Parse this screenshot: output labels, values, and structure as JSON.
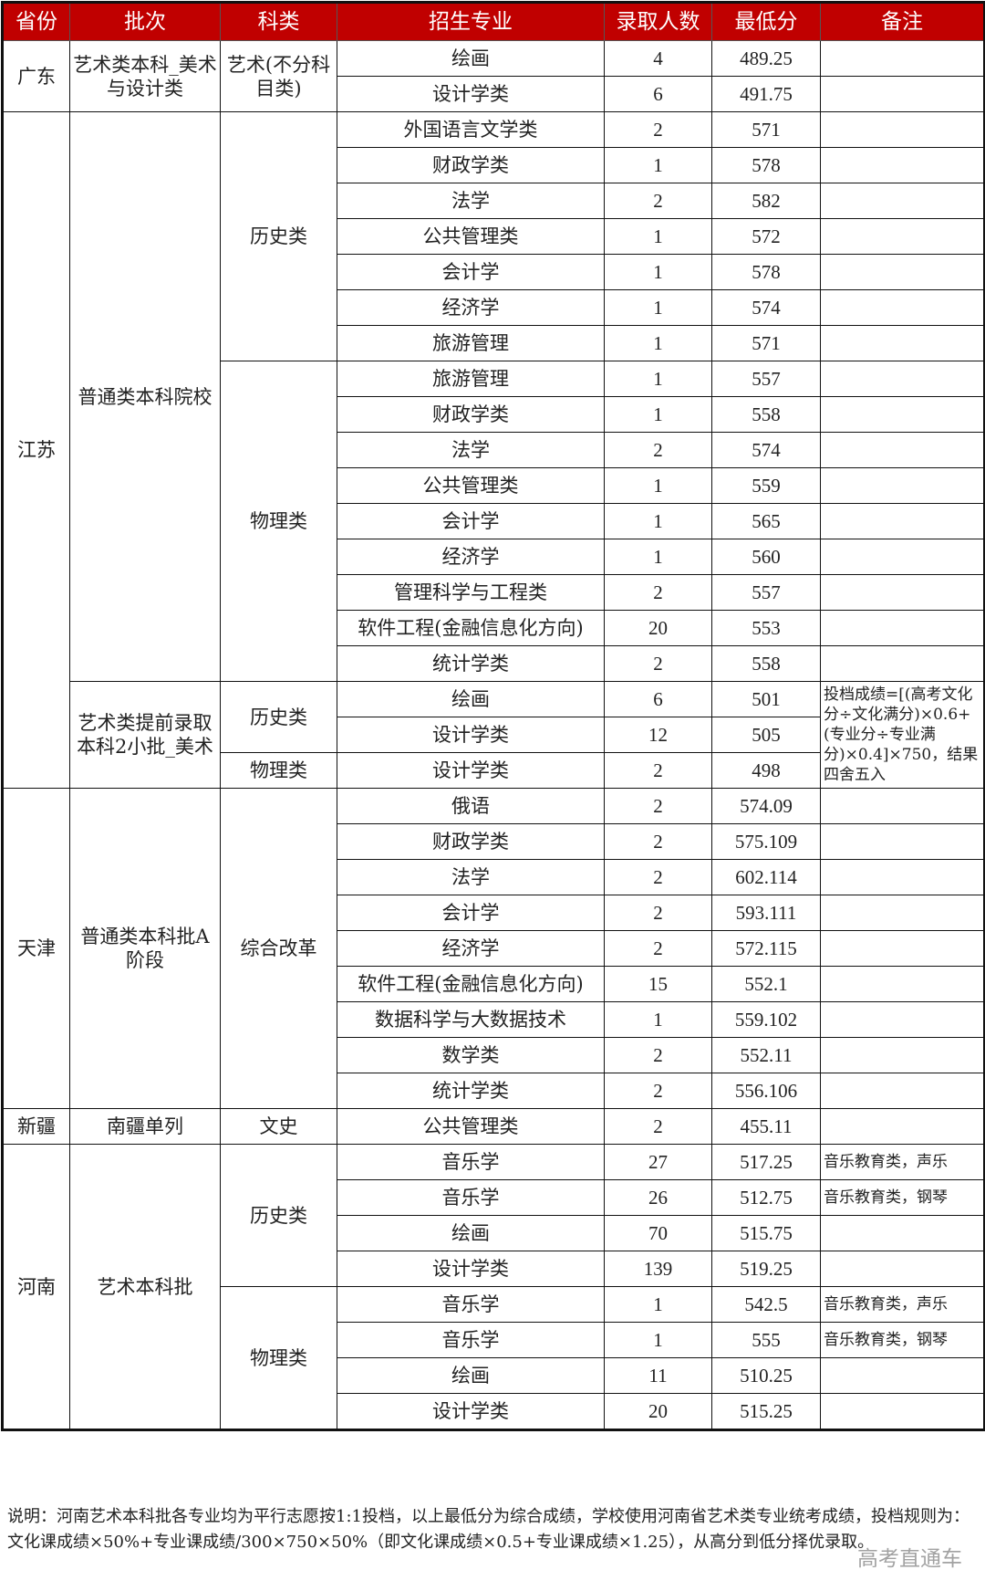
{
  "colors": {
    "header_bg": "#c00000",
    "header_text": "#ffffff",
    "border": "#111111"
  },
  "headers": [
    "省份",
    "批次",
    "科类",
    "招生专业",
    "录取人数",
    "最低分",
    "备注"
  ],
  "provinces": [
    {
      "name": "广东",
      "batches": [
        {
          "name": "艺术类本科_美术与设计类",
          "categories": [
            {
              "name": "艺术(不分科目类)",
              "majors": [
                {
                  "major": "绘画",
                  "count": "4",
                  "score": "489.25",
                  "note": ""
                },
                {
                  "major": "设计学类",
                  "count": "6",
                  "score": "491.75",
                  "note": ""
                }
              ]
            }
          ]
        }
      ]
    },
    {
      "name": "江苏",
      "batches": [
        {
          "name": "普通类本科院校",
          "categories": [
            {
              "name": "历史类",
              "majors": [
                {
                  "major": "外国语言文学类",
                  "count": "2",
                  "score": "571",
                  "note": ""
                },
                {
                  "major": "财政学类",
                  "count": "1",
                  "score": "578",
                  "note": ""
                },
                {
                  "major": "法学",
                  "count": "2",
                  "score": "582",
                  "note": ""
                },
                {
                  "major": "公共管理类",
                  "count": "1",
                  "score": "572",
                  "note": ""
                },
                {
                  "major": "会计学",
                  "count": "1",
                  "score": "578",
                  "note": ""
                },
                {
                  "major": "经济学",
                  "count": "1",
                  "score": "574",
                  "note": ""
                },
                {
                  "major": "旅游管理",
                  "count": "1",
                  "score": "571",
                  "note": ""
                }
              ]
            },
            {
              "name": "物理类",
              "majors": [
                {
                  "major": "旅游管理",
                  "count": "1",
                  "score": "557",
                  "note": ""
                },
                {
                  "major": "财政学类",
                  "count": "1",
                  "score": "558",
                  "note": ""
                },
                {
                  "major": "法学",
                  "count": "2",
                  "score": "574",
                  "note": ""
                },
                {
                  "major": "公共管理类",
                  "count": "1",
                  "score": "559",
                  "note": ""
                },
                {
                  "major": "会计学",
                  "count": "1",
                  "score": "565",
                  "note": ""
                },
                {
                  "major": "经济学",
                  "count": "1",
                  "score": "560",
                  "note": ""
                },
                {
                  "major": "管理科学与工程类",
                  "count": "2",
                  "score": "557",
                  "note": ""
                },
                {
                  "major": "软件工程(金融信息化方向)",
                  "count": "20",
                  "score": "553",
                  "note": ""
                },
                {
                  "major": "统计学类",
                  "count": "2",
                  "score": "558",
                  "note": ""
                }
              ]
            }
          ]
        },
        {
          "name": "艺术类提前录取本科2小批_美术",
          "note": "投档成绩=[(高考文化分÷文化满分)×0.6+(专业分÷专业满分)×0.4]×750，结果四舍五入",
          "categories": [
            {
              "name": "历史类",
              "majors": [
                {
                  "major": "绘画",
                  "count": "6",
                  "score": "501"
                },
                {
                  "major": "设计学类",
                  "count": "12",
                  "score": "505"
                }
              ]
            },
            {
              "name": "物理类",
              "majors": [
                {
                  "major": "设计学类",
                  "count": "2",
                  "score": "498"
                }
              ]
            }
          ]
        }
      ]
    },
    {
      "name": "天津",
      "batches": [
        {
          "name": "普通类本科批A阶段",
          "categories": [
            {
              "name": "综合改革",
              "majors": [
                {
                  "major": "俄语",
                  "count": "2",
                  "score": "574.09",
                  "note": ""
                },
                {
                  "major": "财政学类",
                  "count": "2",
                  "score": "575.109",
                  "note": ""
                },
                {
                  "major": "法学",
                  "count": "2",
                  "score": "602.114",
                  "note": ""
                },
                {
                  "major": "会计学",
                  "count": "2",
                  "score": "593.111",
                  "note": ""
                },
                {
                  "major": "经济学",
                  "count": "2",
                  "score": "572.115",
                  "note": ""
                },
                {
                  "major": "软件工程(金融信息化方向)",
                  "count": "15",
                  "score": "552.1",
                  "note": ""
                },
                {
                  "major": "数据科学与大数据技术",
                  "count": "1",
                  "score": "559.102",
                  "note": ""
                },
                {
                  "major": "数学类",
                  "count": "2",
                  "score": "552.11",
                  "note": ""
                },
                {
                  "major": "统计学类",
                  "count": "2",
                  "score": "556.106",
                  "note": ""
                }
              ]
            }
          ]
        }
      ]
    },
    {
      "name": "新疆",
      "batches": [
        {
          "name": "南疆单列",
          "categories": [
            {
              "name": "文史",
              "majors": [
                {
                  "major": "公共管理类",
                  "count": "2",
                  "score": "455.11",
                  "note": ""
                }
              ]
            }
          ]
        }
      ]
    },
    {
      "name": "河南",
      "batches": [
        {
          "name": "艺术本科批",
          "categories": [
            {
              "name": "历史类",
              "majors": [
                {
                  "major": "音乐学",
                  "count": "27",
                  "score": "517.25",
                  "note": "音乐教育类，声乐"
                },
                {
                  "major": "音乐学",
                  "count": "26",
                  "score": "512.75",
                  "note": "音乐教育类，钢琴"
                },
                {
                  "major": "绘画",
                  "count": "70",
                  "score": "515.75",
                  "note": ""
                },
                {
                  "major": "设计学类",
                  "count": "139",
                  "score": "519.25",
                  "note": ""
                }
              ]
            },
            {
              "name": "物理类",
              "majors": [
                {
                  "major": "音乐学",
                  "count": "1",
                  "score": "542.5",
                  "note": "音乐教育类，声乐"
                },
                {
                  "major": "音乐学",
                  "count": "1",
                  "score": "555",
                  "note": "音乐教育类，钢琴"
                },
                {
                  "major": "绘画",
                  "count": "11",
                  "score": "510.25",
                  "note": ""
                },
                {
                  "major": "设计学类",
                  "count": "20",
                  "score": "515.25",
                  "note": ""
                }
              ]
            }
          ]
        }
      ]
    }
  ],
  "footnote": "说明：河南艺术本科批各专业均为平行志愿按1:1投档，以上最低分为综合成绩，学校使用河南省艺术类专业统考成绩，投档规则为：文化课成绩×50%+专业课成绩/300×750×50%（即文化课成绩×0.5+专业课成绩×1.25），从高分到低分择优录取。",
  "watermark": "高考直通车"
}
